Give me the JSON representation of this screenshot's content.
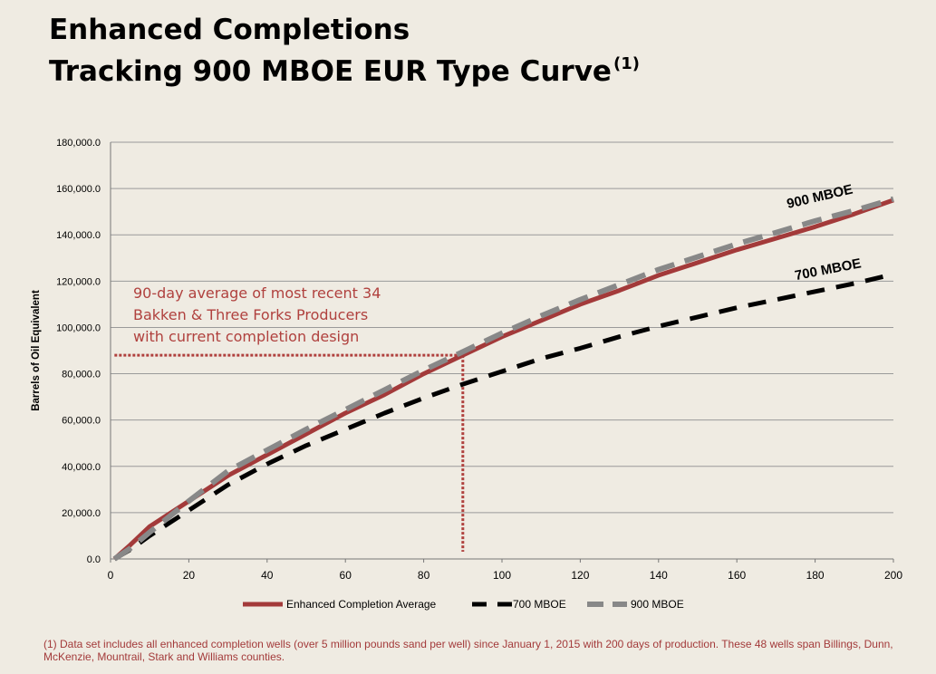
{
  "title_line1": "Enhanced Completions",
  "title_line2": "Tracking 900 MBOE EUR Type Curve",
  "title_superscript": "(1)",
  "footnote": "(1) Data set includes all enhanced completion wells (over 5 million pounds sand per well) since January 1, 2015 with 200 days of production.  These 48 wells span Billings, Dunn, McKenzie, Mountrail, Stark and Williams counties.",
  "colors": {
    "enhanced": "#a33a3a",
    "mboe700": "#000000",
    "mboe900": "#888888",
    "grid": "#9a9a9a",
    "annotation": "#b0413e"
  },
  "chart_data": {
    "type": "line",
    "title": "",
    "xlabel": "",
    "ylabel": "Barrels of Oil Equivalent",
    "xlim": [
      0,
      200
    ],
    "ylim": [
      0,
      180000
    ],
    "x_ticks": [
      "0",
      "20",
      "40",
      "60",
      "80",
      "100",
      "120",
      "140",
      "160",
      "180",
      "200"
    ],
    "y_ticks": [
      "0.0",
      "20,000.0",
      "40,000.0",
      "60,000.0",
      "80,000.0",
      "100,000.0",
      "120,000.0",
      "140,000.0",
      "160,000.0",
      "180,000.0"
    ],
    "grid": "horizontal",
    "legend_position": "bottom",
    "series": [
      {
        "name": "Enhanced Completion Average",
        "style": "solid",
        "x": [
          1,
          5,
          10,
          20,
          30,
          40,
          50,
          60,
          70,
          80,
          90,
          100,
          110,
          120,
          130,
          140,
          150,
          160,
          170,
          180,
          190,
          200
        ],
        "y": [
          0,
          6000,
          14000,
          25000,
          36000,
          45000,
          54000,
          63000,
          71000,
          80000,
          88000,
          96000,
          103000,
          110000,
          116000,
          122500,
          128000,
          133500,
          138500,
          143500,
          149000,
          155000
        ]
      },
      {
        "name": "700 MBOE",
        "style": "dashed",
        "x": [
          1,
          5,
          10,
          20,
          30,
          40,
          50,
          60,
          70,
          80,
          90,
          100,
          110,
          120,
          130,
          140,
          150,
          160,
          170,
          180,
          190,
          200
        ],
        "y": [
          0,
          4000,
          10000,
          21000,
          32000,
          41000,
          49000,
          56000,
          63000,
          69500,
          75500,
          81000,
          86500,
          91000,
          96000,
          100500,
          104500,
          108500,
          112000,
          115500,
          119000,
          123000
        ]
      },
      {
        "name": "900 MBOE",
        "style": "dashed",
        "x": [
          1,
          5,
          10,
          20,
          30,
          40,
          50,
          60,
          70,
          80,
          90,
          100,
          110,
          120,
          130,
          140,
          150,
          160,
          170,
          180,
          190,
          200
        ],
        "y": [
          0,
          4500,
          11500,
          25000,
          38000,
          47000,
          56000,
          64500,
          73000,
          81500,
          89500,
          97500,
          105000,
          112000,
          118500,
          125000,
          130500,
          136000,
          141000,
          146000,
          150500,
          155500
        ]
      }
    ],
    "annotations": [
      {
        "text": "90-day average of most recent 34",
        "kind": "note_line"
      },
      {
        "text": "Bakken & Three Forks Producers",
        "kind": "note_line"
      },
      {
        "text": "with current completion design",
        "kind": "note_line"
      },
      {
        "text": "900 MBOE",
        "kind": "curve_label",
        "x": 180,
        "y": 153000,
        "angle": -13
      },
      {
        "text": "700 MBOE",
        "kind": "curve_label",
        "x": 182,
        "y": 122000,
        "angle": -11
      }
    ],
    "reference_point": {
      "x": 90,
      "y": 88000
    }
  }
}
